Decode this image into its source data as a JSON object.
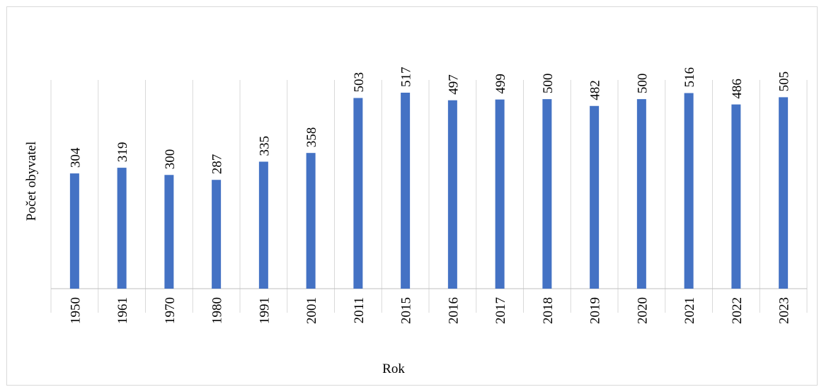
{
  "chart_data": {
    "type": "bar",
    "title": "",
    "xlabel": "Rok",
    "ylabel": "Počet obyvatel",
    "categories": [
      "1950",
      "1961",
      "1970",
      "1980",
      "1991",
      "2001",
      "2011",
      "2015",
      "2016",
      "2017",
      "2018",
      "2019",
      "2020",
      "2021",
      "2022",
      "2023"
    ],
    "values": [
      304,
      319,
      300,
      287,
      335,
      358,
      503,
      517,
      497,
      499,
      500,
      482,
      500,
      516,
      486,
      505
    ],
    "ylim": [
      0,
      550
    ],
    "grid": "vertical category separators",
    "legend": "none",
    "data_labels": true,
    "colors": {
      "bar": "#4472c4",
      "grid": "#d9d9d9",
      "axis": "#bfbfbf",
      "text": "#000000"
    }
  }
}
